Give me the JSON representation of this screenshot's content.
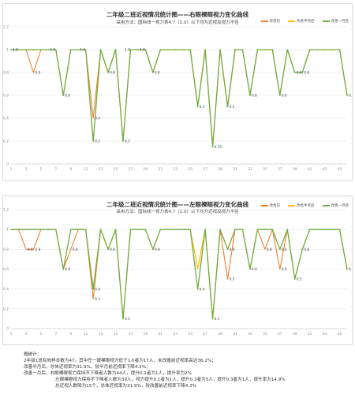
{
  "colors": {
    "before": "#ed7d31",
    "half_year": "#ffc000",
    "one_month": "#70ad47",
    "grid": "#e6e6e6",
    "axis_text": "#8a8a8a"
  },
  "chart_data": [
    {
      "type": "line",
      "title": "二年级二班近视情况统计图——右眼裸眼视力变化曲线",
      "subtitle": "采用方法：国际线一视力表4.7（1.0）以下均为近视及视力不佳",
      "legend": [
        "改善前",
        "改善半月后",
        "改善一月后"
      ],
      "legend_position": "top-right",
      "ylim": [
        0,
        1.2
      ],
      "yticks": [
        "0",
        "0.2",
        "0.4",
        "0.6",
        "0.8",
        "1",
        "1.2"
      ],
      "xticks": [
        "1",
        "3",
        "5",
        "7",
        "9",
        "11",
        "13",
        "15",
        "17",
        "19",
        "21",
        "23",
        "25",
        "27",
        "29",
        "31",
        "33",
        "35",
        "37",
        "39",
        "41",
        "43",
        "45"
      ],
      "grid": true,
      "x": [
        1,
        2,
        3,
        4,
        5,
        6,
        7,
        8,
        9,
        10,
        11,
        12,
        13,
        14,
        15,
        16,
        17,
        18,
        19,
        20,
        21,
        22,
        23,
        24,
        25,
        26,
        27,
        28,
        29,
        30,
        31,
        32,
        33,
        34,
        35,
        36,
        37,
        38,
        39,
        40,
        41,
        42,
        43,
        44,
        45,
        46
      ],
      "series": [
        {
          "name": "改善前",
          "values": [
            1,
            1,
            1,
            0.8,
            1,
            1,
            1,
            0.6,
            1,
            1,
            1,
            0.4,
            1,
            0.8,
            1,
            0.2,
            1,
            1,
            1,
            0.8,
            1,
            1,
            1,
            1,
            1,
            0.5,
            1,
            0.15,
            1,
            0.5,
            1,
            1,
            0.6,
            1,
            1,
            1,
            0.6,
            1,
            0.8,
            0.8,
            1,
            1,
            1,
            1,
            1,
            0.6
          ]
        },
        {
          "name": "改善半月后",
          "values": [
            1,
            1,
            1,
            1,
            1,
            1,
            1,
            0.6,
            1,
            1,
            1,
            0.2,
            1,
            0.8,
            1,
            0.2,
            1,
            1,
            1,
            0.8,
            1,
            1,
            1,
            1,
            1,
            0.5,
            1,
            0.15,
            1,
            0.5,
            1,
            1,
            0.6,
            1,
            1,
            1,
            0.6,
            1,
            0.8,
            0.8,
            1,
            1,
            1,
            1,
            1,
            0.6
          ]
        },
        {
          "name": "改善一月后",
          "values": [
            1,
            1,
            1,
            1,
            1,
            1,
            1,
            0.6,
            1,
            1,
            1,
            0.2,
            1,
            0.8,
            1,
            0.2,
            1,
            1,
            1,
            0.8,
            1,
            1,
            1,
            1,
            1,
            0.5,
            1,
            0.15,
            1,
            0.5,
            1,
            1,
            0.6,
            1,
            1,
            1,
            0.6,
            1,
            0.8,
            0.8,
            1,
            1,
            1,
            1,
            1,
            0.6
          ]
        }
      ],
      "data_labels": [
        {
          "x": 1,
          "text": "1.0"
        },
        {
          "x": 4,
          "text": "0.8"
        },
        {
          "x": 6,
          "text": "1.0"
        },
        {
          "x": 8,
          "text": "0.6"
        },
        {
          "x": 10,
          "text": "1.0"
        },
        {
          "x": 12,
          "text": "0.4"
        },
        {
          "x": 12,
          "text": "0.2"
        },
        {
          "x": 14,
          "text": "0.8"
        },
        {
          "x": 16,
          "text": "1.0"
        },
        {
          "x": 16,
          "text": "0.2"
        },
        {
          "x": 18,
          "text": "1.0"
        },
        {
          "x": 20,
          "text": "0.8"
        },
        {
          "x": 26,
          "text": "0.5"
        },
        {
          "x": 28,
          "text": "0.15"
        },
        {
          "x": 30,
          "text": "0.5"
        },
        {
          "x": 33,
          "text": "0.6"
        },
        {
          "x": 37,
          "text": "0.6"
        },
        {
          "x": 39,
          "text": "0.8"
        },
        {
          "x": 40,
          "text": "0.8"
        },
        {
          "x": 46,
          "text": "0.6"
        }
      ]
    },
    {
      "type": "line",
      "title": "二年级二班近视情况统计图——左眼裸眼视力变化曲线",
      "subtitle": "采用方法：国际线一视力表4.7（1.0）以下均为近视及视力不佳",
      "legend": [
        "改善前",
        "改善半月后",
        "改善一月后"
      ],
      "legend_position": "top-right",
      "ylim": [
        0,
        1.2
      ],
      "yticks": [
        "0",
        "0.2",
        "0.4",
        "0.6",
        "0.8",
        "1",
        "1.2"
      ],
      "xticks": [
        "1",
        "3",
        "5",
        "7",
        "9",
        "11",
        "13",
        "15",
        "17",
        "19",
        "21",
        "23",
        "25",
        "27",
        "29",
        "31",
        "33",
        "35",
        "37",
        "39",
        "41",
        "43",
        "45"
      ],
      "grid": true,
      "x": [
        1,
        2,
        3,
        4,
        5,
        6,
        7,
        8,
        9,
        10,
        11,
        12,
        13,
        14,
        15,
        16,
        17,
        18,
        19,
        20,
        21,
        22,
        23,
        24,
        25,
        26,
        27,
        28,
        29,
        30,
        31,
        32,
        33,
        34,
        35,
        36,
        37,
        38,
        39,
        40,
        41,
        42,
        43,
        44,
        45,
        46
      ],
      "series": [
        {
          "name": "改善前",
          "values": [
            1,
            1,
            0.8,
            0.8,
            1,
            1,
            1,
            0.6,
            0.8,
            1,
            1,
            0.3,
            1,
            0.8,
            1,
            0.1,
            1,
            1,
            1,
            0.8,
            1,
            1,
            1,
            1,
            1,
            0.6,
            1,
            0.1,
            1,
            0.5,
            1,
            1,
            0.6,
            1,
            0.8,
            1,
            0.6,
            1,
            0.5,
            0.8,
            1,
            1,
            1,
            1,
            1,
            0.6
          ]
        },
        {
          "name": "改善半月后",
          "values": [
            1,
            1,
            1,
            1,
            1,
            1,
            1,
            0.6,
            1,
            1,
            1,
            0.4,
            1,
            0.8,
            1,
            0.1,
            1,
            1,
            1,
            0.8,
            1,
            1,
            1,
            1,
            1,
            0.6,
            1,
            0.1,
            1,
            0.8,
            1,
            1,
            0.6,
            1,
            1,
            1,
            0.8,
            1,
            0.5,
            0.8,
            1,
            1,
            1,
            1,
            1,
            0.6
          ]
        },
        {
          "name": "改善一月后",
          "values": [
            1,
            1,
            1,
            1,
            1,
            1,
            1,
            0.6,
            1,
            1,
            1,
            0.4,
            1,
            0.8,
            1,
            0.1,
            1,
            1,
            1,
            0.8,
            1,
            1,
            1,
            1,
            1,
            0.4,
            1,
            0.1,
            1,
            0.8,
            1,
            1,
            0.6,
            1,
            1,
            1,
            0.8,
            1,
            0.5,
            0.8,
            1,
            1,
            1,
            1,
            1,
            0.6
          ]
        }
      ],
      "data_labels": [
        {
          "x": 3,
          "text": "0.8"
        },
        {
          "x": 4,
          "text": "0.8"
        },
        {
          "x": 8,
          "text": "0.6"
        },
        {
          "x": 9,
          "text": "0.8"
        },
        {
          "x": 12,
          "text": "0.4"
        },
        {
          "x": 12,
          "text": "0.3"
        },
        {
          "x": 14,
          "text": "0.8"
        },
        {
          "x": 16,
          "text": "0.1"
        },
        {
          "x": 20,
          "text": "0.8"
        },
        {
          "x": 26,
          "text": "0.4"
        },
        {
          "x": 28,
          "text": "0.1"
        },
        {
          "x": 30,
          "text": "0.8"
        },
        {
          "x": 30,
          "text": "0.5"
        },
        {
          "x": 33,
          "text": "0.6"
        },
        {
          "x": 35,
          "text": "0.8"
        },
        {
          "x": 37,
          "text": "0.6"
        },
        {
          "x": 37,
          "text": "0.8"
        },
        {
          "x": 39,
          "text": "0.5"
        },
        {
          "x": 40,
          "text": "0.8"
        },
        {
          "x": 46,
          "text": "0.6"
        }
      ]
    }
  ],
  "notes": {
    "heading": "概统计：",
    "lines": [
      "2年级1班有效样本数为47。其中任一眼裸眼视力低于1.0者为17人，未改善前近视率高达36.2%；",
      "改善半月后，总体近视率为31.9%，较半月前近视率下降4.3%；",
      "改善一月后，右眼裸眼视力保持不下降者人数为44人，提升0.2者为1人，提升率为2%",
      "左眼裸眼视力保持不下降者人数为39人，视力提升0.1者为1人，提升0.2者为5人，提升0.3者为1人，提升率为14.9%",
      "总近视人数降为15个，总体近视率为31.9%，较改善前近视率下降4.3%"
    ]
  }
}
